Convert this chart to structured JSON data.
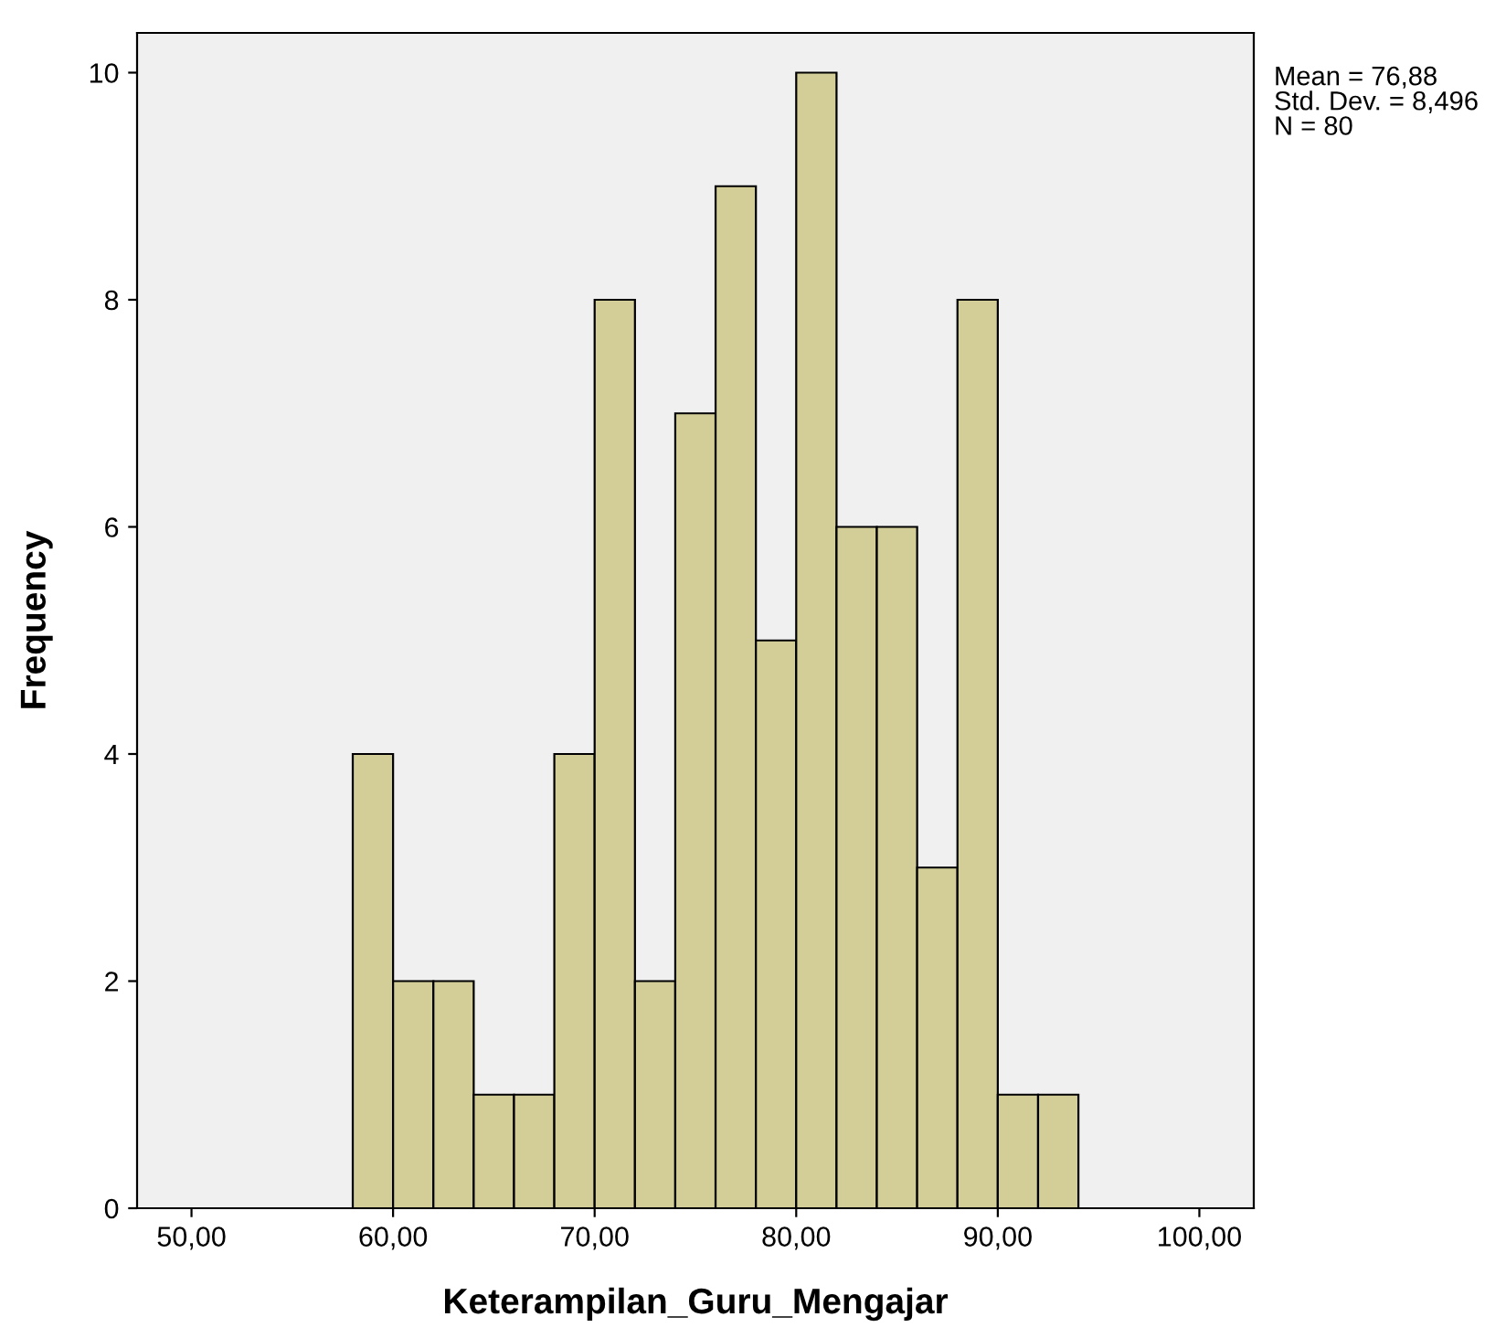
{
  "chart_data": {
    "type": "histogram",
    "bins": [
      58,
      60,
      62,
      64,
      66,
      68,
      70,
      72,
      74,
      76,
      78,
      80,
      82,
      84,
      86,
      88,
      90,
      92,
      94
    ],
    "values": [
      4,
      2,
      2,
      1,
      1,
      4,
      8,
      2,
      7,
      9,
      5,
      10,
      6,
      6,
      3,
      8,
      1,
      1
    ],
    "color": "#d3ce97",
    "xlabel": "Keterampilan_Guru_Mengajar",
    "ylabel": "Frequency",
    "xlim": [
      47.3,
      102.7
    ],
    "xticks": [
      {
        "value": 50,
        "label": "50,00"
      },
      {
        "value": 60,
        "label": "60,00"
      },
      {
        "value": 70,
        "label": "70,00"
      },
      {
        "value": 80,
        "label": "80,00"
      },
      {
        "value": 90,
        "label": "90,00"
      },
      {
        "value": 100,
        "label": "100,00"
      }
    ],
    "ylim": [
      0,
      10.35
    ],
    "yticks": [
      0,
      2,
      4,
      6,
      8,
      10
    ],
    "grid": false,
    "annotations": [
      "Mean = 76,88\nStd. Dev. = 8,496\nN = 80"
    ]
  }
}
